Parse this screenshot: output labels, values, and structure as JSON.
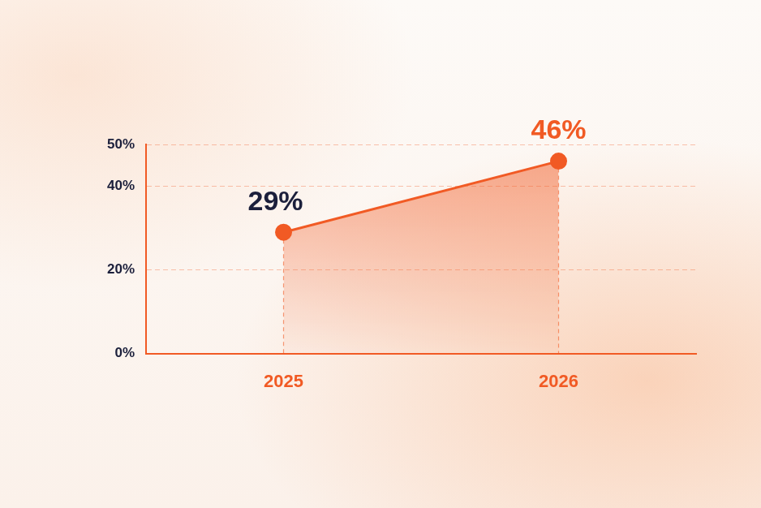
{
  "chart_data": {
    "type": "line",
    "categories": [
      "2025",
      "2026"
    ],
    "values": [
      29,
      46
    ],
    "value_labels": [
      "29%",
      "46%"
    ],
    "color": "#f15a24",
    "marker": "circle",
    "ylim": [
      0,
      50
    ],
    "yticks": [
      {
        "value": 0,
        "label": "0%"
      },
      {
        "value": 20,
        "label": "20%"
      },
      {
        "value": 40,
        "label": "40%"
      },
      {
        "value": 50,
        "label": "50%"
      }
    ],
    "grid": true,
    "data_labels": true
  }
}
